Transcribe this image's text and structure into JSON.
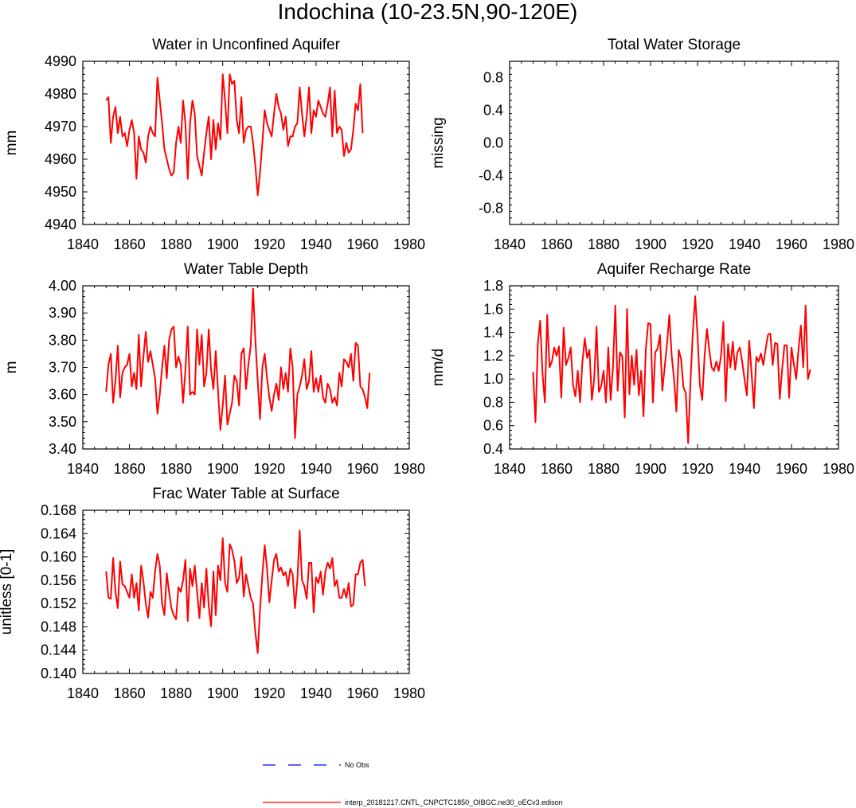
{
  "figure": {
    "title": "Indochina (10-23.5N,90-120E)",
    "legend": {
      "obs_label": "No Obs",
      "obs_color": "#0000ff",
      "model_label": "interp_20181217.CNTL_CNPCTC1850_OIBGC.ne30_oECv3.edison",
      "model_color": "#ff0000"
    }
  },
  "chart_data": [
    {
      "type": "line",
      "title": "Water in Unconfined Aquifer",
      "ylabel": "mm",
      "xlabel": "",
      "xlim": [
        1840,
        1980
      ],
      "ylim": [
        4940,
        4990
      ],
      "xticks": [
        "1840",
        "1860",
        "1880",
        "1900",
        "1920",
        "1940",
        "1960",
        "1980"
      ],
      "yticks": [
        "4940",
        "4950",
        "4960",
        "4970",
        "4980",
        "4990"
      ],
      "x_start": 1850,
      "series": [
        {
          "name": "model",
          "color": "#ff0000",
          "values": [
            4978,
            4979,
            4965,
            4973,
            4976,
            4968,
            4973,
            4967,
            4968,
            4964,
            4969,
            4972,
            4968,
            4954,
            4967,
            4963,
            4962,
            4959,
            4967,
            4970,
            4968,
            4967,
            4985,
            4978,
            4971,
            4963,
            4960,
            4957,
            4955,
            4956,
            4965,
            4970,
            4965,
            4978,
            4971,
            4954,
            4971,
            4978,
            4974,
            4961,
            4958,
            4955,
            4962,
            4968,
            4973,
            4960,
            4972,
            4963,
            4971,
            4966,
            4986,
            4978,
            4968,
            4986,
            4983,
            4984,
            4972,
            4968,
            4979,
            4965,
            4969,
            4970,
            4970,
            4965,
            4958,
            4949,
            4956,
            4965,
            4975,
            4971,
            4969,
            4967,
            4974,
            4980,
            4976,
            4974,
            4969,
            4973,
            4964,
            4967,
            4967,
            4970,
            4971,
            4982,
            4974,
            4967,
            4973,
            4982,
            4968,
            4975,
            4973,
            4978,
            4976,
            4974,
            4973,
            4977,
            4982,
            4967,
            4981,
            4968,
            4970,
            4969,
            4961,
            4965,
            4962,
            4963,
            4969,
            4977,
            4975,
            4983,
            4968
          ]
        }
      ]
    },
    {
      "type": "line",
      "title": "Total Water Storage",
      "ylabel": "missing",
      "xlabel": "",
      "xlim": [
        1840,
        1980
      ],
      "ylim": [
        -1,
        1
      ],
      "xticks": [
        "1840",
        "1860",
        "1880",
        "1900",
        "1920",
        "1940",
        "1960",
        "1980"
      ],
      "yticks": [
        "-0.8",
        "-0.4",
        "0.0",
        "0.4",
        "0.8"
      ],
      "x_start": 1850,
      "series": []
    },
    {
      "type": "line",
      "title": "Water Table Depth",
      "ylabel": "m",
      "xlabel": "",
      "xlim": [
        1840,
        1980
      ],
      "ylim": [
        3.4,
        4.0
      ],
      "xticks": [
        "1840",
        "1860",
        "1880",
        "1900",
        "1920",
        "1940",
        "1960",
        "1980"
      ],
      "yticks": [
        "3.40",
        "3.50",
        "3.60",
        "3.70",
        "3.80",
        "3.90",
        "4.00"
      ],
      "x_start": 1850,
      "series": [
        {
          "name": "model",
          "color": "#ff0000",
          "values": [
            3.61,
            3.71,
            3.75,
            3.57,
            3.65,
            3.78,
            3.59,
            3.68,
            3.7,
            3.71,
            3.75,
            3.63,
            3.68,
            3.62,
            3.82,
            3.63,
            3.74,
            3.83,
            3.72,
            3.76,
            3.71,
            3.66,
            3.53,
            3.6,
            3.7,
            3.78,
            3.66,
            3.8,
            3.84,
            3.85,
            3.7,
            3.74,
            3.71,
            3.57,
            3.69,
            3.85,
            3.6,
            3.61,
            3.6,
            3.84,
            3.71,
            3.82,
            3.63,
            3.68,
            3.84,
            3.69,
            3.62,
            3.76,
            3.61,
            3.47,
            3.56,
            3.67,
            3.49,
            3.53,
            3.57,
            3.67,
            3.65,
            3.56,
            3.75,
            3.77,
            3.62,
            3.71,
            3.78,
            3.99,
            3.8,
            3.65,
            3.51,
            3.7,
            3.75,
            3.66,
            3.59,
            3.54,
            3.6,
            3.64,
            3.58,
            3.7,
            3.62,
            3.68,
            3.61,
            3.77,
            3.7,
            3.44,
            3.6,
            3.63,
            3.67,
            3.73,
            3.62,
            3.65,
            3.76,
            3.61,
            3.66,
            3.61,
            3.67,
            3.59,
            3.57,
            3.64,
            3.62,
            3.57,
            3.59,
            3.56,
            3.68,
            3.63,
            3.73,
            3.72,
            3.7,
            3.75,
            3.65,
            3.79,
            3.78,
            3.63,
            3.62,
            3.59,
            3.55,
            3.68
          ]
        }
      ]
    },
    {
      "type": "line",
      "title": "Aquifer Recharge Rate",
      "ylabel": "mm/d",
      "xlabel": "",
      "xlim": [
        1840,
        1980
      ],
      "ylim": [
        0.4,
        1.8
      ],
      "xticks": [
        "1840",
        "1860",
        "1880",
        "1900",
        "1920",
        "1940",
        "1960",
        "1980"
      ],
      "yticks": [
        "0.4",
        "0.6",
        "0.8",
        "1.0",
        "1.2",
        "1.4",
        "1.6",
        "1.8"
      ],
      "x_start": 1850,
      "series": [
        {
          "name": "model",
          "color": "#ff0000",
          "values": [
            1.06,
            0.63,
            1.3,
            1.5,
            1.05,
            0.8,
            1.55,
            1.1,
            1.15,
            1.27,
            1.2,
            1.28,
            0.84,
            1.44,
            1.12,
            1.18,
            1.27,
            0.95,
            0.85,
            1.07,
            0.8,
            1.15,
            1.35,
            1.18,
            1.25,
            0.82,
            1.0,
            1.45,
            0.89,
            0.94,
            1.07,
            0.8,
            1.27,
            0.82,
            1.1,
            1.63,
            0.9,
            1.23,
            1.19,
            0.67,
            1.6,
            0.87,
            1.2,
            0.95,
            1.25,
            0.86,
            1.07,
            0.68,
            1.26,
            1.48,
            1.47,
            0.8,
            1.23,
            1.26,
            1.38,
            0.9,
            1.1,
            1.3,
            1.55,
            1.2,
            1.0,
            0.72,
            1.25,
            1.17,
            0.93,
            0.88,
            0.45,
            0.98,
            1.4,
            1.71,
            1.37,
            0.95,
            0.82,
            1.2,
            1.43,
            1.25,
            1.1,
            1.07,
            1.15,
            1.07,
            1.2,
            1.49,
            0.81,
            1.3,
            1.1,
            1.32,
            1.08,
            1.23,
            1.27,
            1.15,
            1.0,
            0.86,
            1.33,
            1.05,
            0.75,
            1.19,
            1.15,
            1.22,
            1.12,
            1.26,
            1.38,
            1.39,
            1.12,
            1.31,
            1.3,
            0.83,
            1.08,
            1.29,
            1.29,
            0.84,
            1.27,
            1.13,
            1.0,
            1.26,
            1.46,
            1.1,
            1.63,
            1.0,
            1.08
          ]
        }
      ]
    },
    {
      "type": "line",
      "title": "Frac Water Table at Surface",
      "ylabel": "unitless [0-1]",
      "xlabel": "",
      "xlim": [
        1840,
        1980
      ],
      "ylim": [
        0.14,
        0.168
      ],
      "xticks": [
        "1840",
        "1860",
        "1880",
        "1900",
        "1920",
        "1940",
        "1960",
        "1980"
      ],
      "yticks": [
        "0.140",
        "0.144",
        "0.148",
        "0.152",
        "0.156",
        "0.160",
        "0.164",
        "0.168"
      ],
      "x_start": 1850,
      "series": [
        {
          "name": "model",
          "color": "#ff0000",
          "values": [
            0.1575,
            0.153,
            0.1528,
            0.1598,
            0.154,
            0.1512,
            0.1592,
            0.1553,
            0.155,
            0.154,
            0.153,
            0.157,
            0.153,
            0.1555,
            0.1508,
            0.1585,
            0.1558,
            0.152,
            0.1496,
            0.154,
            0.153,
            0.1575,
            0.1605,
            0.1585,
            0.152,
            0.15,
            0.1572,
            0.154,
            0.1512,
            0.15,
            0.1493,
            0.1548,
            0.154,
            0.156,
            0.1595,
            0.149,
            0.158,
            0.155,
            0.1585,
            0.154,
            0.1495,
            0.1555,
            0.1513,
            0.158,
            0.1515,
            0.1481,
            0.1575,
            0.15,
            0.1585,
            0.156,
            0.1632,
            0.1555,
            0.154,
            0.1622,
            0.1612,
            0.1593,
            0.1555,
            0.1564,
            0.16,
            0.1532,
            0.157,
            0.155,
            0.153,
            0.152,
            0.147,
            0.1435,
            0.151,
            0.157,
            0.162,
            0.158,
            0.1522,
            0.156,
            0.1595,
            0.1605,
            0.1575,
            0.1582,
            0.1568,
            0.1574,
            0.155,
            0.158,
            0.157,
            0.1512,
            0.156,
            0.1645,
            0.156,
            0.155,
            0.1528,
            0.159,
            0.159,
            0.1505,
            0.1565,
            0.1555,
            0.1575,
            0.1535,
            0.1575,
            0.159,
            0.158,
            0.1598,
            0.155,
            0.156,
            0.153,
            0.153,
            0.1545,
            0.153,
            0.1555,
            0.1515,
            0.1518,
            0.157,
            0.157,
            0.159,
            0.1595,
            0.155
          ]
        }
      ]
    }
  ]
}
